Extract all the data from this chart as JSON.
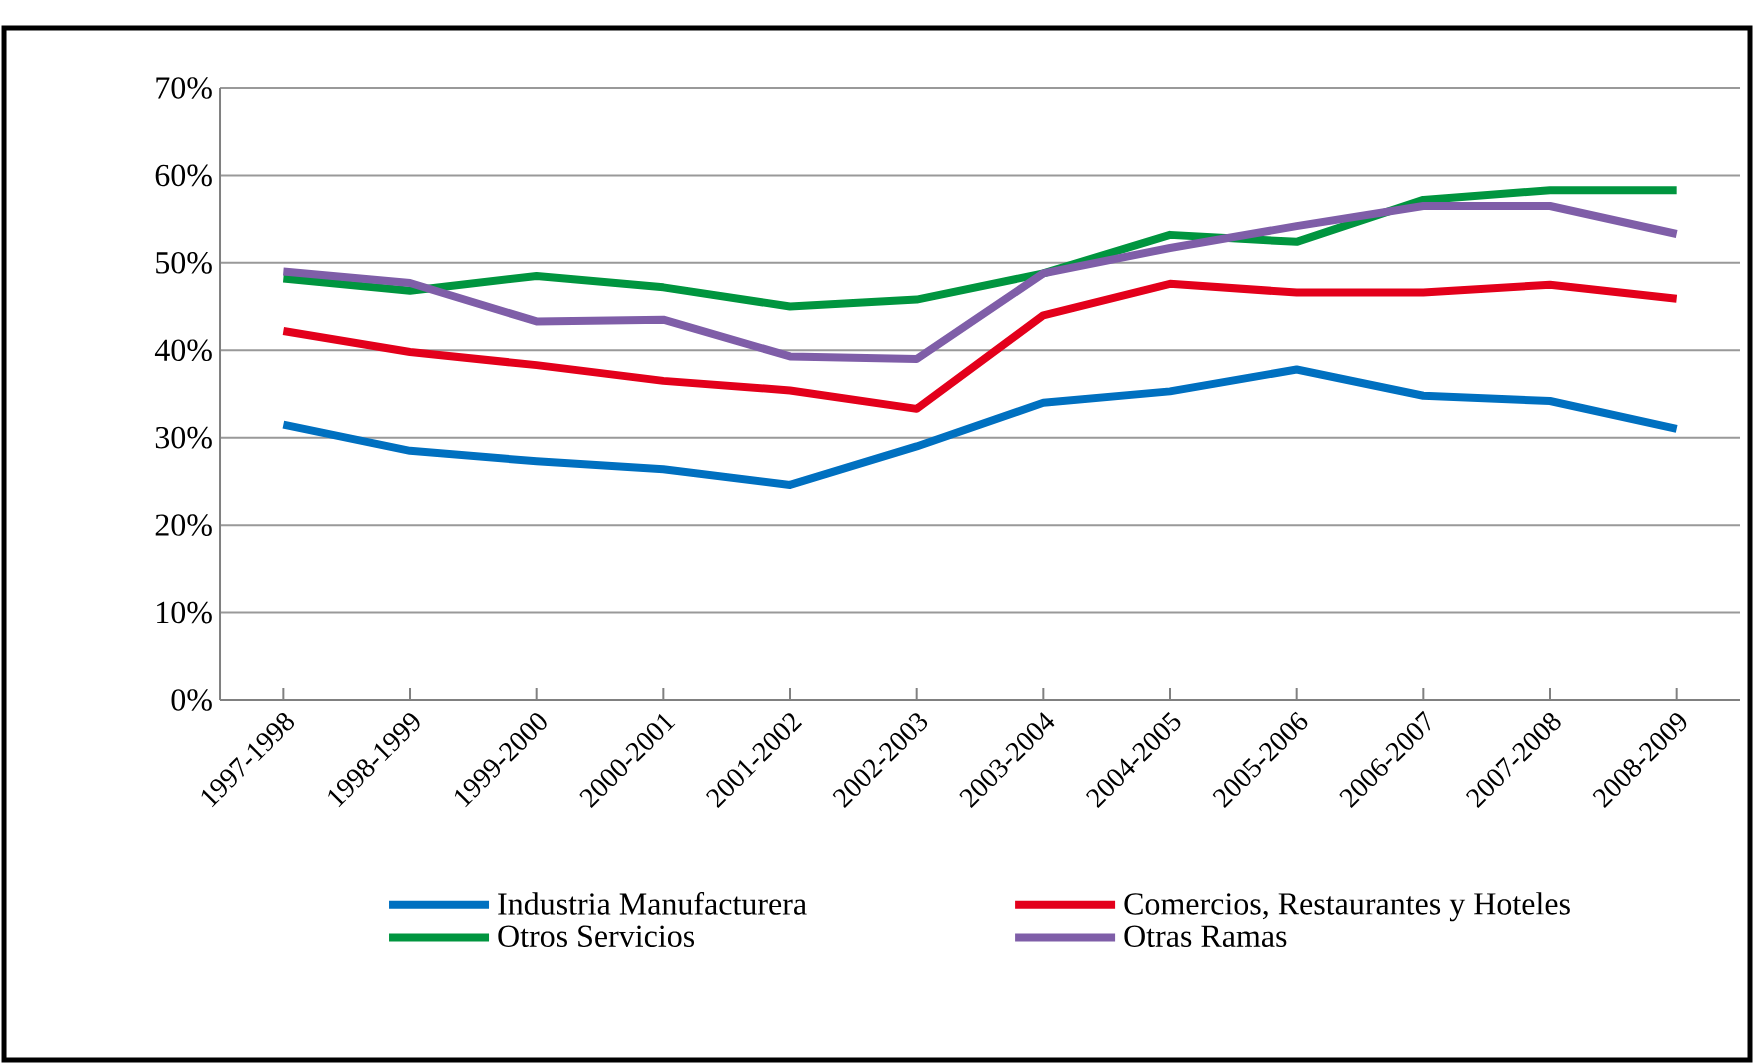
{
  "chart_data": {
    "type": "line",
    "categories": [
      "1997-1998",
      "1998-1999",
      "1999-2000",
      "2000-2001",
      "2001-2002",
      "2002-2003",
      "2003-2004",
      "2004-2005",
      "2005-2006",
      "2006-2007",
      "2007-2008",
      "2008-2009"
    ],
    "series": [
      {
        "name": "Industria Manufacturera",
        "color": "#0070c0",
        "values": [
          31.5,
          28.5,
          27.3,
          26.4,
          24.6,
          29,
          34,
          35.3,
          37.8,
          34.8,
          34.2,
          31
        ]
      },
      {
        "name": "Comercios, Restaurantes y Hoteles",
        "color": "#e3001b",
        "values": [
          42.2,
          39.8,
          38.3,
          36.5,
          35.4,
          33.3,
          44,
          47.6,
          46.6,
          46.6,
          47.5,
          45.9
        ]
      },
      {
        "name": "Otros Servicios",
        "color": "#00953f",
        "values": [
          48.2,
          46.8,
          48.5,
          47.2,
          45,
          45.8,
          48.8,
          53.2,
          52.4,
          57.2,
          58.3,
          58.3
        ]
      },
      {
        "name": "Otras Ramas",
        "color": "#7f5ea8",
        "values": [
          49,
          47.7,
          43.3,
          43.5,
          39.3,
          39,
          48.8,
          51.7,
          54.2,
          56.5,
          56.5,
          53.3
        ]
      }
    ],
    "ylim": [
      0,
      70
    ],
    "yticks": [
      {
        "value": 0,
        "label": "0%"
      },
      {
        "value": 10,
        "label": "10%"
      },
      {
        "value": 20,
        "label": "20%"
      },
      {
        "value": 30,
        "label": "30%"
      },
      {
        "value": 40,
        "label": "40%"
      },
      {
        "value": 50,
        "label": "50%"
      },
      {
        "value": 60,
        "label": "60%"
      },
      {
        "value": 70,
        "label": "70%"
      }
    ],
    "grid": "y",
    "legend": "bottom",
    "marker": "none",
    "line_style": "solid"
  }
}
